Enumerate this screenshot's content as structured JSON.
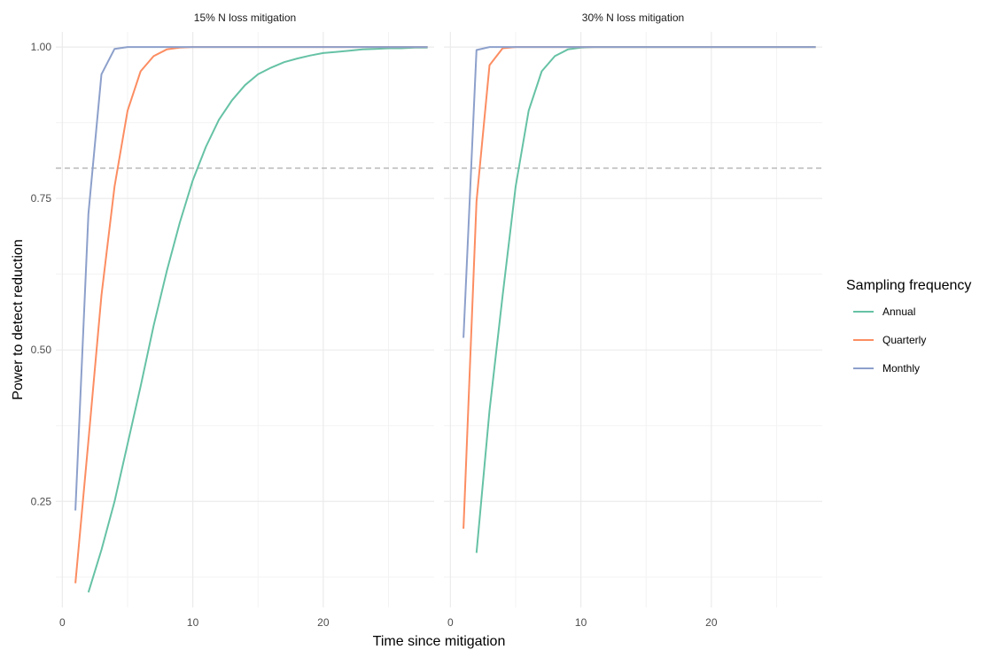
{
  "chart_data": {
    "type": "line",
    "xlabel": "Time since mitigation",
    "ylabel": "Power to detect reduction",
    "xlim": [
      -0.5,
      28.5
    ],
    "ylim": [
      0.075,
      1.025
    ],
    "x_ticks": [
      0,
      10,
      20
    ],
    "x_tick_labels": [
      "0",
      "10",
      "20"
    ],
    "y_ticks": [
      0.25,
      0.5,
      0.75,
      1.0
    ],
    "y_tick_labels": [
      "0.25",
      "0.50",
      "0.75",
      "1.00"
    ],
    "reference_line": {
      "y": 0.8,
      "style": "dashed"
    },
    "grid": true,
    "legend": {
      "title": "Sampling frequency",
      "position": "right",
      "entries": [
        "Annual",
        "Quarterly",
        "Monthly"
      ]
    },
    "colors": {
      "Annual": "#66c2a5",
      "Quarterly": "#fc8d62",
      "Monthly": "#8da0cb",
      "reference": "#b3b3b3",
      "grid": "#ebebeb"
    },
    "panels": [
      {
        "title": "15% N loss mitigation",
        "series": [
          {
            "name": "Annual",
            "x": [
              2,
              3,
              4,
              5,
              6,
              7,
              8,
              9,
              10,
              11,
              12,
              13,
              14,
              15,
              16,
              17,
              18,
              19,
              20,
              21,
              22,
              23,
              24,
              25,
              26,
              27,
              28
            ],
            "y": [
              0.1,
              0.17,
              0.25,
              0.345,
              0.44,
              0.54,
              0.63,
              0.71,
              0.78,
              0.835,
              0.88,
              0.912,
              0.937,
              0.955,
              0.966,
              0.975,
              0.981,
              0.986,
              0.99,
              0.992,
              0.994,
              0.996,
              0.997,
              0.998,
              0.998,
              0.999,
              0.999
            ]
          },
          {
            "name": "Quarterly",
            "x": [
              1,
              2,
              3,
              4,
              5,
              6,
              7,
              8,
              9,
              10,
              12,
              15,
              20,
              25,
              28
            ],
            "y": [
              0.115,
              0.35,
              0.59,
              0.77,
              0.895,
              0.96,
              0.985,
              0.996,
              0.999,
              1.0,
              1.0,
              1.0,
              1.0,
              1.0,
              1.0
            ]
          },
          {
            "name": "Monthly",
            "x": [
              1,
              2,
              3,
              4,
              5,
              6,
              10,
              15,
              20,
              25,
              28
            ],
            "y": [
              0.235,
              0.725,
              0.955,
              0.997,
              1.0,
              1.0,
              1.0,
              1.0,
              1.0,
              1.0,
              1.0
            ]
          }
        ]
      },
      {
        "title": "30% N loss mitigation",
        "series": [
          {
            "name": "Annual",
            "x": [
              2,
              3,
              4,
              5,
              6,
              7,
              8,
              9,
              10,
              11,
              12,
              15,
              20,
              25,
              28
            ],
            "y": [
              0.165,
              0.4,
              0.59,
              0.77,
              0.895,
              0.96,
              0.985,
              0.996,
              0.999,
              1.0,
              1.0,
              1.0,
              1.0,
              1.0,
              1.0
            ]
          },
          {
            "name": "Quarterly",
            "x": [
              1,
              2,
              3,
              4,
              5,
              10,
              15,
              20,
              25,
              28
            ],
            "y": [
              0.205,
              0.745,
              0.97,
              0.998,
              1.0,
              1.0,
              1.0,
              1.0,
              1.0,
              1.0
            ]
          },
          {
            "name": "Monthly",
            "x": [
              1,
              2,
              3,
              4,
              10,
              15,
              20,
              25,
              28
            ],
            "y": [
              0.52,
              0.995,
              1.0,
              1.0,
              1.0,
              1.0,
              1.0,
              1.0,
              1.0
            ]
          }
        ]
      }
    ]
  }
}
